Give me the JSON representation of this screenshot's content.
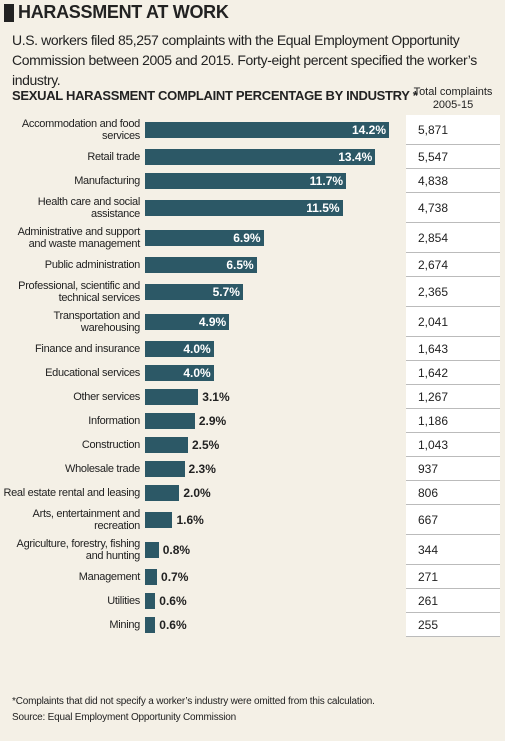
{
  "chart_data": {
    "type": "bar",
    "title": "HARASSMENT AT WORK",
    "subtitle": "U.S. workers filed 85,257 complaints with the Equal Employment Opportunity Commission between 2005 and 2015. Forty-eight percent specified the worker’s industry.",
    "chart_title": "SEXUAL HARASSMENT COMPLAINT PERCENTAGE BY INDUSTRY *",
    "categories": [
      "Accommodation and food services",
      "Retail trade",
      "Manufacturing",
      "Health care and social assistance",
      "Administrative and support and waste management",
      "Public administration",
      "Professional, scientific and technical services",
      "Transportation and warehousing",
      "Finance and insurance",
      "Educational services",
      "Other services",
      "Information",
      "Construction",
      "Wholesale trade",
      "Real estate rental and leasing",
      "Arts, entertainment and recreation",
      "Agriculture, forestry, fishing and hunting",
      "Management",
      "Utilities",
      "Mining"
    ],
    "values": [
      14.2,
      13.4,
      11.7,
      11.5,
      6.9,
      6.5,
      5.7,
      4.9,
      4.0,
      4.0,
      3.1,
      2.9,
      2.5,
      2.3,
      2.0,
      1.6,
      0.8,
      0.7,
      0.6,
      0.6
    ],
    "value_labels": [
      "14.2%",
      "13.4%",
      "11.7%",
      "11.5%",
      "6.9%",
      "6.5%",
      "5.7%",
      "4.9%",
      "4.0%",
      "4.0%",
      "3.1%",
      "2.9%",
      "2.5%",
      "2.3%",
      "2.0%",
      "1.6%",
      "0.8%",
      "0.7%",
      "0.6%",
      "0.6%"
    ],
    "color": "#2c5866",
    "totals": {
      "name": "Total complaints 2005-15",
      "values": [
        5871,
        5547,
        4838,
        4738,
        2854,
        2674,
        2365,
        2041,
        1643,
        1642,
        1267,
        1186,
        1043,
        937,
        806,
        667,
        344,
        271,
        261,
        255
      ],
      "value_labels": [
        "5,871",
        "5,547",
        "4,838",
        "4,738",
        "2,854",
        "2,674",
        "2,365",
        "2,041",
        "1,643",
        "1,642",
        "1,267",
        "1,186",
        "1,043",
        "937",
        "806",
        "667",
        "344",
        "271",
        "261",
        "255"
      ]
    },
    "footnote": "*Complaints that did not specify a worker’s industry were omitted from this calculation.",
    "source": "Source: Equal Employment Opportunity Commission"
  }
}
